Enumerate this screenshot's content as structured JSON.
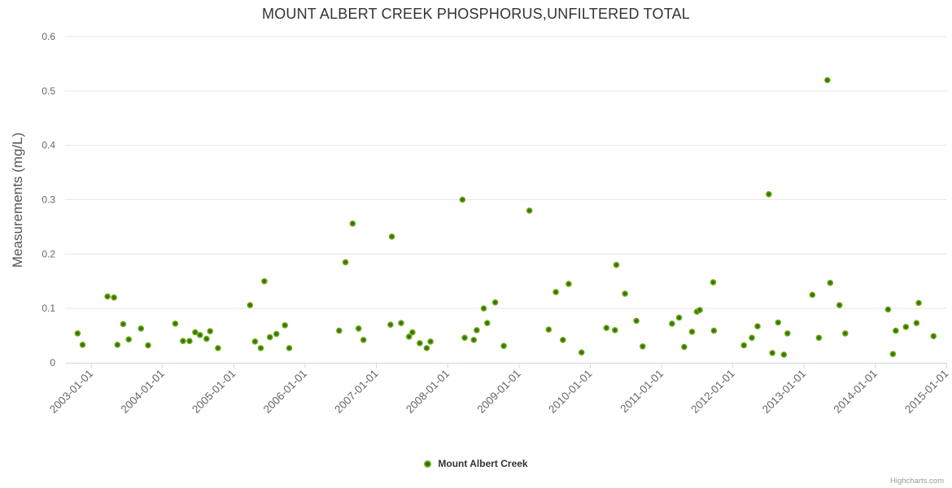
{
  "title": "MOUNT ALBERT CREEK PHOSPHORUS,UNFILTERED TOTAL",
  "y_axis_title": "Measurements (mg/L)",
  "legend": {
    "series_label": "Mount Albert Creek"
  },
  "credits_label": "Highcharts.com",
  "colors": {
    "point_outer": "#77b51e",
    "point_core": "#336f05",
    "grid_line": "#e6e6e6",
    "axis_line": "#ccd6eb",
    "axis_label": "#666666",
    "title_text": "#333333",
    "credits_text": "#999999"
  },
  "chart_data": {
    "type": "scatter",
    "title": "MOUNT ALBERT CREEK PHOSPHORUS,UNFILTERED TOTAL",
    "xlabel": "",
    "ylabel": "Measurements (mg/L)",
    "ylim": [
      0,
      0.6
    ],
    "y_ticks": [
      0,
      0.1,
      0.2,
      0.3,
      0.4,
      0.5,
      0.6
    ],
    "x_ticks": [
      "2003-01-01",
      "2004-01-01",
      "2005-01-01",
      "2006-01-01",
      "2007-01-01",
      "2008-01-01",
      "2009-01-01",
      "2010-01-01",
      "2011-01-01",
      "2012-01-01",
      "2013-01-01",
      "2014-01-01",
      "2015-01-01"
    ],
    "grid": true,
    "legend_position": "bottom-center",
    "series": [
      {
        "name": "Mount Albert Creek",
        "points": [
          [
            "2002-10-22",
            0.054
          ],
          [
            "2002-11-17",
            0.033
          ],
          [
            "2003-03-23",
            0.122
          ],
          [
            "2003-04-26",
            0.12
          ],
          [
            "2003-05-13",
            0.033
          ],
          [
            "2003-06-12",
            0.071
          ],
          [
            "2003-07-10",
            0.043
          ],
          [
            "2003-09-12",
            0.063
          ],
          [
            "2003-10-18",
            0.032
          ],
          [
            "2004-03-05",
            0.072
          ],
          [
            "2004-04-14",
            0.04
          ],
          [
            "2004-05-17",
            0.04
          ],
          [
            "2004-06-16",
            0.056
          ],
          [
            "2004-07-10",
            0.051
          ],
          [
            "2004-08-13",
            0.044
          ],
          [
            "2004-09-01",
            0.058
          ],
          [
            "2004-10-11",
            0.027
          ],
          [
            "2005-03-23",
            0.106
          ],
          [
            "2005-04-18",
            0.039
          ],
          [
            "2005-05-17",
            0.027
          ],
          [
            "2005-06-05",
            0.15
          ],
          [
            "2005-07-03",
            0.047
          ],
          [
            "2005-08-06",
            0.053
          ],
          [
            "2005-09-19",
            0.069
          ],
          [
            "2005-10-11",
            0.027
          ],
          [
            "2006-06-23",
            0.059
          ],
          [
            "2006-07-25",
            0.185
          ],
          [
            "2006-09-01",
            0.256
          ],
          [
            "2006-10-01",
            0.063
          ],
          [
            "2006-10-26",
            0.042
          ],
          [
            "2007-03-12",
            0.07
          ],
          [
            "2007-03-19",
            0.232
          ],
          [
            "2007-05-06",
            0.073
          ],
          [
            "2007-06-16",
            0.048
          ],
          [
            "2007-07-03",
            0.056
          ],
          [
            "2007-08-10",
            0.036
          ],
          [
            "2007-09-15",
            0.027
          ],
          [
            "2007-10-04",
            0.039
          ],
          [
            "2008-03-16",
            0.3
          ],
          [
            "2008-03-27",
            0.046
          ],
          [
            "2008-05-13",
            0.042
          ],
          [
            "2008-05-28",
            0.06
          ],
          [
            "2008-07-03",
            0.1
          ],
          [
            "2008-07-21",
            0.073
          ],
          [
            "2008-09-01",
            0.111
          ],
          [
            "2008-10-14",
            0.031
          ],
          [
            "2009-02-24",
            0.28
          ],
          [
            "2009-06-01",
            0.061
          ],
          [
            "2009-07-07",
            0.13
          ],
          [
            "2009-08-13",
            0.042
          ],
          [
            "2009-09-12",
            0.145
          ],
          [
            "2009-11-17",
            0.019
          ],
          [
            "2010-03-23",
            0.064
          ],
          [
            "2010-05-06",
            0.06
          ],
          [
            "2010-05-13",
            0.18
          ],
          [
            "2010-06-27",
            0.127
          ],
          [
            "2010-08-24",
            0.077
          ],
          [
            "2010-09-26",
            0.03
          ],
          [
            "2011-02-24",
            0.072
          ],
          [
            "2011-03-30",
            0.083
          ],
          [
            "2011-04-26",
            0.029
          ],
          [
            "2011-06-05",
            0.057
          ],
          [
            "2011-06-30",
            0.094
          ],
          [
            "2011-07-14",
            0.097
          ],
          [
            "2011-09-22",
            0.148
          ],
          [
            "2011-09-26",
            0.059
          ],
          [
            "2012-02-27",
            0.032
          ],
          [
            "2012-04-07",
            0.046
          ],
          [
            "2012-05-06",
            0.067
          ],
          [
            "2012-07-03",
            0.31
          ],
          [
            "2012-07-21",
            0.018
          ],
          [
            "2012-08-20",
            0.074
          ],
          [
            "2012-09-19",
            0.015
          ],
          [
            "2012-10-07",
            0.054
          ],
          [
            "2013-02-13",
            0.125
          ],
          [
            "2013-03-16",
            0.046
          ],
          [
            "2013-04-29",
            0.52
          ],
          [
            "2013-05-13",
            0.147
          ],
          [
            "2013-06-30",
            0.106
          ],
          [
            "2013-07-29",
            0.054
          ],
          [
            "2014-03-05",
            0.098
          ],
          [
            "2014-03-30",
            0.016
          ],
          [
            "2014-04-14",
            0.059
          ],
          [
            "2014-06-05",
            0.066
          ],
          [
            "2014-07-29",
            0.073
          ],
          [
            "2014-08-10",
            0.11
          ],
          [
            "2014-10-25",
            0.049
          ]
        ]
      }
    ]
  }
}
